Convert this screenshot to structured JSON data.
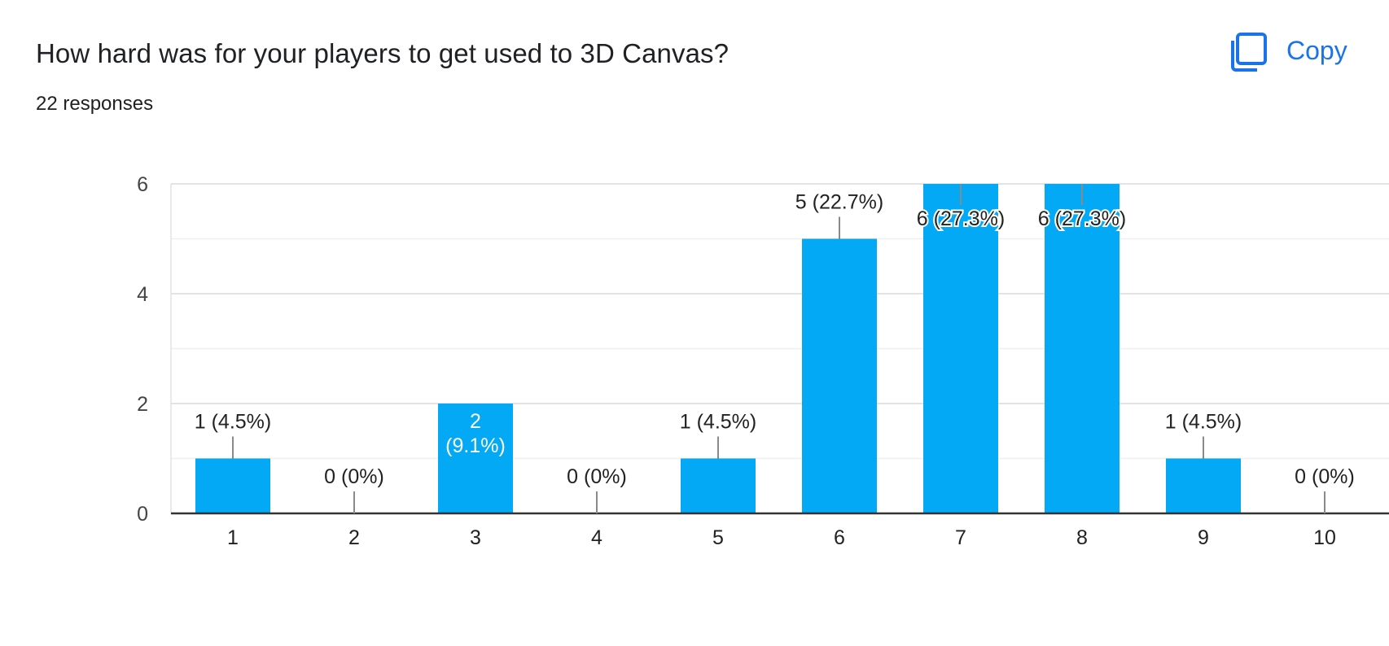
{
  "header": {
    "title": "How hard was for your players to get used to 3D Canvas?",
    "responses": "22 responses",
    "copy_label": "Copy",
    "copy_icon": "copy-icon"
  },
  "colors": {
    "bar": "#03a9f4",
    "accent": "#1a73e8",
    "text": "#202124",
    "grid": "#e8eaed",
    "axis": "#333333",
    "leader": "#8a8a8a"
  },
  "chart_data": {
    "type": "bar",
    "categories": [
      "1",
      "2",
      "3",
      "4",
      "5",
      "6",
      "7",
      "8",
      "9",
      "10"
    ],
    "values": [
      1,
      0,
      2,
      0,
      1,
      5,
      6,
      6,
      1,
      0
    ],
    "data_labels": [
      "1 (4.5%)",
      "0 (0%)",
      "2 (9.1%)",
      "0 (0%)",
      "1 (4.5%)",
      "5 (22.7%)",
      "6 (27.3%)",
      "6 (27.3%)",
      "1 (4.5%)",
      "0 (0%)"
    ],
    "y_ticks": [
      0,
      2,
      4,
      6
    ],
    "ylim": [
      0,
      6
    ],
    "grid": true,
    "legend": "none"
  }
}
